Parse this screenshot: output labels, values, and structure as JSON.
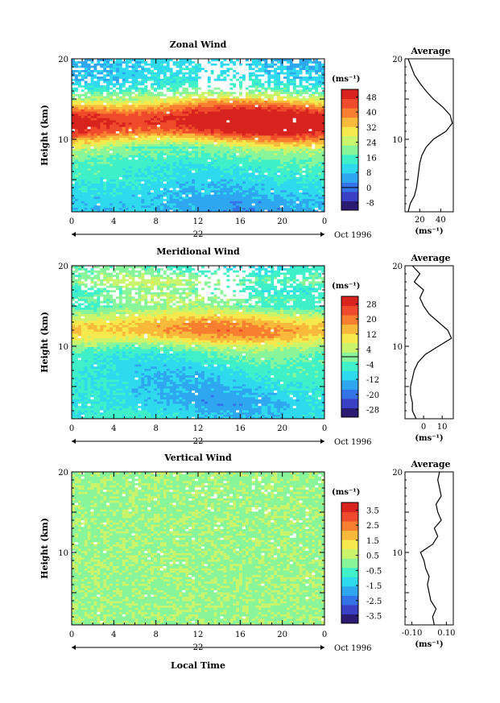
{
  "chart_data": [
    {
      "type": "heatmap",
      "title": "Zonal Wind",
      "ylabel": "Height (km)",
      "xlabel": "",
      "x_ticks": [
        "0",
        "4",
        "8",
        "12",
        "16",
        "20",
        "0"
      ],
      "y_ticks": [
        "10",
        "20"
      ],
      "ylim": [
        1,
        20
      ],
      "xlim_hours": [
        0,
        24
      ],
      "date_day": "22",
      "date_month": "Oct 1996",
      "colorbar_unit": "(ms⁻¹)",
      "colorbar_ticks": [
        "-8",
        "0",
        "8",
        "16",
        "24",
        "32",
        "40",
        "48"
      ],
      "colorbar_range": [
        -12,
        52
      ],
      "field_profile": {
        "heights_km": [
          1,
          3,
          5,
          7,
          9,
          10,
          11,
          12,
          13,
          14,
          15,
          16,
          17,
          18,
          20
        ],
        "values": [
          6,
          8,
          12,
          15,
          22,
          34,
          47,
          52,
          50,
          40,
          28,
          18,
          12,
          10,
          8
        ]
      },
      "average_profile": {
        "title": "Average",
        "x_ticks": [
          "20",
          "40"
        ],
        "xlim": [
          6,
          52
        ],
        "unit": "(ms⁻¹)",
        "heights_km": [
          1,
          2,
          3,
          4,
          5,
          6,
          7,
          8,
          9,
          10,
          11,
          12,
          13,
          14,
          15,
          16,
          17,
          18,
          19,
          20
        ],
        "values": [
          9,
          11,
          15,
          17,
          18,
          19,
          20,
          22,
          26,
          33,
          45,
          51,
          49,
          42,
          33,
          26,
          20,
          15,
          12,
          9
        ]
      }
    },
    {
      "type": "heatmap",
      "title": "Meridional Wind",
      "ylabel": "Height (km)",
      "xlabel": "",
      "x_ticks": [
        "0",
        "4",
        "8",
        "12",
        "16",
        "20",
        "0"
      ],
      "y_ticks": [
        "10",
        "20"
      ],
      "ylim": [
        1,
        20
      ],
      "xlim_hours": [
        0,
        24
      ],
      "date_day": "22",
      "date_month": "Oct 1996",
      "colorbar_unit": "(ms⁻¹)",
      "colorbar_ticks": [
        "-28",
        "-20",
        "-12",
        "-4",
        "4",
        "12",
        "20",
        "28"
      ],
      "colorbar_range": [
        -32,
        32
      ],
      "field_profile": {
        "heights_km": [
          1,
          3,
          5,
          7,
          9,
          10,
          11,
          12,
          13,
          14,
          15,
          16,
          17,
          18,
          20
        ],
        "values": [
          -8,
          -12,
          -10,
          -8,
          -4,
          2,
          12,
          17,
          14,
          6,
          -2,
          0,
          -4,
          2,
          -6
        ]
      },
      "average_profile": {
        "title": "Average",
        "x_ticks": [
          "0",
          "10"
        ],
        "xlim": [
          -10,
          16
        ],
        "unit": "(ms⁻¹)",
        "heights_km": [
          1,
          2,
          3,
          4,
          5,
          6,
          7,
          8,
          9,
          10,
          11,
          12,
          13,
          14,
          15,
          16,
          17,
          18,
          19,
          20
        ],
        "values": [
          -4,
          -6,
          -6,
          -7,
          -7,
          -6,
          -5,
          -3,
          1,
          8,
          15,
          13,
          8,
          3,
          0,
          -2,
          0,
          -5,
          -2,
          -6
        ]
      }
    },
    {
      "type": "heatmap",
      "title": "Vertical Wind",
      "ylabel": "Height (km)",
      "xlabel": "Local Time",
      "x_ticks": [
        "0",
        "4",
        "8",
        "12",
        "16",
        "20",
        "0"
      ],
      "y_ticks": [
        "10",
        "20"
      ],
      "ylim": [
        1,
        20
      ],
      "xlim_hours": [
        0,
        24
      ],
      "date_day": "22",
      "date_month": "Oct 1996",
      "colorbar_unit": "(ms⁻¹)",
      "colorbar_ticks": [
        "-3.5",
        "-2.5",
        "-1.5",
        "-0.5",
        "0.5",
        "1.5",
        "2.5",
        "3.5"
      ],
      "colorbar_range": [
        -4,
        4
      ],
      "field_profile": {
        "heights_km": [
          1,
          5,
          10,
          15,
          20
        ],
        "values": [
          0,
          0,
          0,
          0,
          0
        ]
      },
      "average_profile": {
        "title": "Average",
        "x_ticks": [
          "-0.10",
          "0.10"
        ],
        "xlim": [
          -0.14,
          0.14
        ],
        "unit": "(ms⁻¹)",
        "heights_km": [
          1,
          2,
          3,
          4,
          5,
          6,
          7,
          8,
          9,
          10,
          11,
          12,
          13,
          14,
          15,
          16,
          17,
          18,
          19,
          20
        ],
        "values": [
          0.03,
          0.02,
          0.04,
          0.01,
          0.0,
          -0.01,
          0.0,
          -0.02,
          -0.03,
          -0.05,
          0.02,
          0.05,
          0.03,
          0.07,
          0.05,
          0.04,
          0.07,
          0.06,
          0.05,
          0.06
        ]
      }
    }
  ],
  "palette": [
    "#2b1b73",
    "#3a3fc4",
    "#3472e8",
    "#2fa7f0",
    "#2fd9ee",
    "#3ff0c8",
    "#88f59a",
    "#c9f46b",
    "#f5e94d",
    "#f9b93a",
    "#f77f2f",
    "#ef4a2b",
    "#d8231f"
  ]
}
